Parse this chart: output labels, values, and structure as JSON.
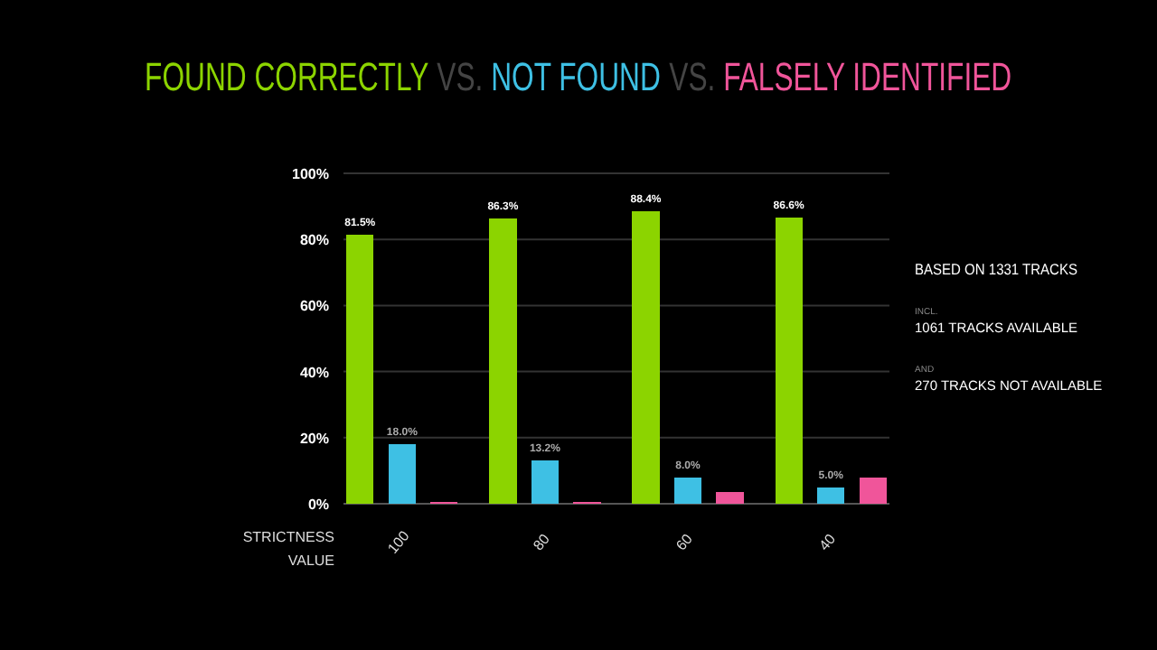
{
  "chart_data": {
    "type": "bar",
    "legend": "top",
    "xlabel": "STRICTNESS VALUE",
    "categories": [
      "100",
      "80",
      "60",
      "40"
    ],
    "series": [
      {
        "name": "FOUND CORRECTLY",
        "color": "#8cd400",
        "values": [
          81.5,
          86.3,
          88.4,
          86.6
        ],
        "value_labels": [
          "81.5%",
          "86.3%",
          "88.4%",
          "86.6%"
        ]
      },
      {
        "name": "NOT FOUND",
        "color": "#3ec0e4",
        "values": [
          18.0,
          13.2,
          8.0,
          5.0
        ],
        "value_labels": [
          "18.0%",
          "13.2%",
          "8.0%",
          "5.0%"
        ]
      },
      {
        "name": "FALSELY IDENTIFIED",
        "color": "#f0559a",
        "values": [
          0.5,
          0.5,
          3.5,
          8.0
        ]
      }
    ],
    "ylim": [
      0,
      100
    ],
    "yticks": [
      {
        "value": 0,
        "label": "0%"
      },
      {
        "value": 20,
        "label": "20%"
      },
      {
        "value": 40,
        "label": "40%"
      },
      {
        "value": 60,
        "label": "60%"
      },
      {
        "value": 80,
        "label": "80%"
      },
      {
        "value": 100,
        "label": "100%"
      }
    ],
    "grid": "y",
    "annotations": [
      "VS.",
      "VS.",
      "BASED ON 1331 TRACKS",
      "INCL.",
      "1061 TRACKS AVAILABLE",
      "AND",
      "270 TRACKS NOT AVAILABLE"
    ]
  }
}
